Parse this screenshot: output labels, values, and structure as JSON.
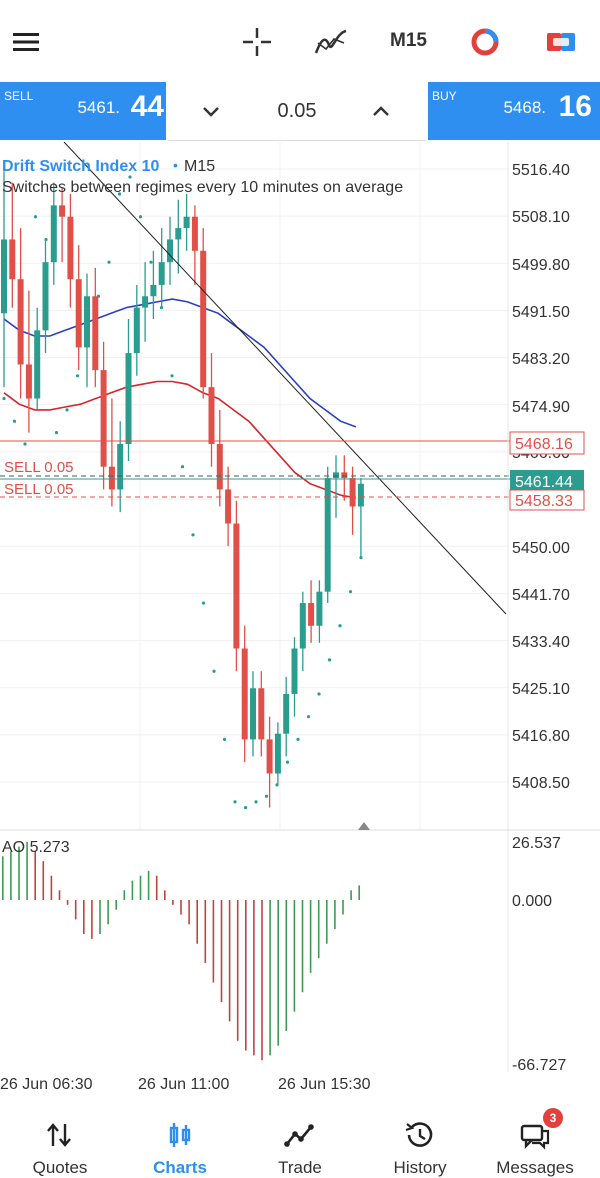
{
  "topbar": {
    "menu_icon": "hamburger-menu-icon",
    "crosshair_icon": "crosshair-icon",
    "indicators_icon": "indicators-icon",
    "timeframe": "M15",
    "color_icon": "color-scheme-icon",
    "toggle_icon": "one-click-trading-icon"
  },
  "trade": {
    "sell_tag": "SELL",
    "sell_price_main": "5461.",
    "sell_price_big": "44",
    "volume": "0.05",
    "buy_tag": "BUY",
    "buy_price_main": "5468.",
    "buy_price_big": "16",
    "down_icon": "chevron-down-icon",
    "up_icon": "chevron-up-icon"
  },
  "chart": {
    "symbol": "Drift Switch Index 10",
    "bullet": "•",
    "timeframe": "M15",
    "description": "Switches between regimes every 10 minutes on average",
    "price_ticks": [
      "5516.40",
      "5508.10",
      "5499.80",
      "5491.50",
      "5483.20",
      "5474.90",
      "5466.60",
      "5458.33",
      "5450.00",
      "5441.70",
      "5433.40",
      "5425.10",
      "5416.80",
      "5408.50"
    ],
    "buy_line_label": "5468.16",
    "bid_line_label": "5461.44",
    "order_line_label": "5458.33",
    "order1": "SELL 0.05",
    "order2": "SELL 0.05",
    "ao_label": "AO 5.273",
    "ao_ticks": [
      "26.537",
      "0.000",
      "-66.727"
    ],
    "time_labels": [
      "26 Jun 06:30",
      "26 Jun 11:00",
      "26 Jun 15:30"
    ],
    "colors": {
      "bull": "#2a9d8f",
      "bear": "#e05048",
      "accent": "#2f8ff0"
    }
  },
  "chart_data": {
    "type": "candlestick",
    "ylim": [
      5404.0,
      5520.0
    ],
    "candles": [
      [
        5491,
        5516,
        5478,
        5504
      ],
      [
        5504,
        5514,
        5492,
        5497
      ],
      [
        5497,
        5506,
        5476,
        5482
      ],
      [
        5482,
        5495,
        5470,
        5476
      ],
      [
        5476,
        5492,
        5474,
        5488
      ],
      [
        5488,
        5504,
        5484,
        5500
      ],
      [
        5500,
        5514,
        5496,
        5510
      ],
      [
        5510,
        5513,
        5500,
        5508
      ],
      [
        5508,
        5512,
        5492,
        5497
      ],
      [
        5497,
        5503,
        5481,
        5485
      ],
      [
        5485,
        5498,
        5478,
        5494
      ],
      [
        5494,
        5499,
        5478,
        5481
      ],
      [
        5481,
        5486,
        5460,
        5464
      ],
      [
        5464,
        5476,
        5457,
        5460
      ],
      [
        5460,
        5472,
        5456,
        5468
      ],
      [
        5468,
        5490,
        5465,
        5484
      ],
      [
        5484,
        5496,
        5480,
        5492
      ],
      [
        5492,
        5500,
        5486,
        5494
      ],
      [
        5494,
        5502,
        5490,
        5496
      ],
      [
        5496,
        5506,
        5492,
        5500
      ],
      [
        5500,
        5508,
        5496,
        5504
      ],
      [
        5504,
        5511,
        5498,
        5506
      ],
      [
        5506,
        5512,
        5502,
        5508
      ],
      [
        5508,
        5510,
        5496,
        5502
      ],
      [
        5502,
        5506,
        5476,
        5478
      ],
      [
        5478,
        5484,
        5464,
        5468
      ],
      [
        5468,
        5474,
        5457,
        5460
      ],
      [
        5460,
        5464,
        5450,
        5454
      ],
      [
        5454,
        5458,
        5428,
        5432
      ],
      [
        5432,
        5436,
        5412,
        5416
      ],
      [
        5416,
        5428,
        5413,
        5425
      ],
      [
        5425,
        5428,
        5413,
        5416
      ],
      [
        5416,
        5420,
        5404,
        5410
      ],
      [
        5410,
        5419,
        5408,
        5417
      ],
      [
        5417,
        5427,
        5413,
        5424
      ],
      [
        5424,
        5434,
        5420,
        5432
      ],
      [
        5432,
        5442,
        5428,
        5440
      ],
      [
        5440,
        5444,
        5433,
        5436
      ],
      [
        5436,
        5444,
        5433,
        5442
      ],
      [
        5442,
        5464,
        5440,
        5462
      ],
      [
        5462,
        5466,
        5455,
        5463
      ],
      [
        5463,
        5466,
        5458,
        5462
      ],
      [
        5462,
        5464,
        5452,
        5457
      ],
      [
        5457,
        5462,
        5448,
        5461
      ]
    ],
    "ma_blue": [
      5490,
      5488,
      5487,
      5487,
      5488,
      5489,
      5490,
      5491,
      5492,
      5492.5,
      5493,
      5493.5,
      5493,
      5492,
      5491,
      5489,
      5487,
      5485,
      5482,
      5479,
      5476,
      5474,
      5472,
      5471
    ],
    "ma_red": [
      5477,
      5475,
      5474,
      5474,
      5474.5,
      5475,
      5476,
      5477,
      5478,
      5478.5,
      5479,
      5479,
      5478.5,
      5477,
      5476,
      5474,
      5472,
      5469,
      5466,
      5463,
      5461,
      5460,
      5459,
      5458.5
    ],
    "sar": [
      5476,
      5472,
      5468,
      5508,
      5504,
      5470,
      5474,
      5480,
      5486,
      5494,
      5500,
      5512,
      5515,
      5508,
      5500,
      5492,
      5480,
      5464,
      5452,
      5440,
      5428,
      5416,
      5405,
      5404,
      5405,
      5406,
      5408,
      5412,
      5416,
      5420,
      5424,
      5430,
      5436,
      5442,
      5448
    ],
    "ao_values": [
      18,
      20,
      22,
      24,
      20,
      16,
      10,
      4,
      -2,
      -8,
      -14,
      -16,
      -14,
      -10,
      -4,
      4,
      8,
      10,
      12,
      10,
      4,
      -2,
      -6,
      -10,
      -18,
      -26,
      -34,
      -42,
      -50,
      -58,
      -62,
      -64,
      -66,
      -64,
      -60,
      -54,
      -46,
      -38,
      -30,
      -24,
      -18,
      -12,
      -6,
      4,
      6
    ]
  },
  "nav": {
    "items": [
      {
        "label": "Quotes",
        "icon": "quotes-icon"
      },
      {
        "label": "Charts",
        "icon": "charts-icon"
      },
      {
        "label": "Trade",
        "icon": "trade-icon"
      },
      {
        "label": "History",
        "icon": "history-icon"
      },
      {
        "label": "Messages",
        "icon": "messages-icon",
        "badge": "3"
      }
    ]
  }
}
